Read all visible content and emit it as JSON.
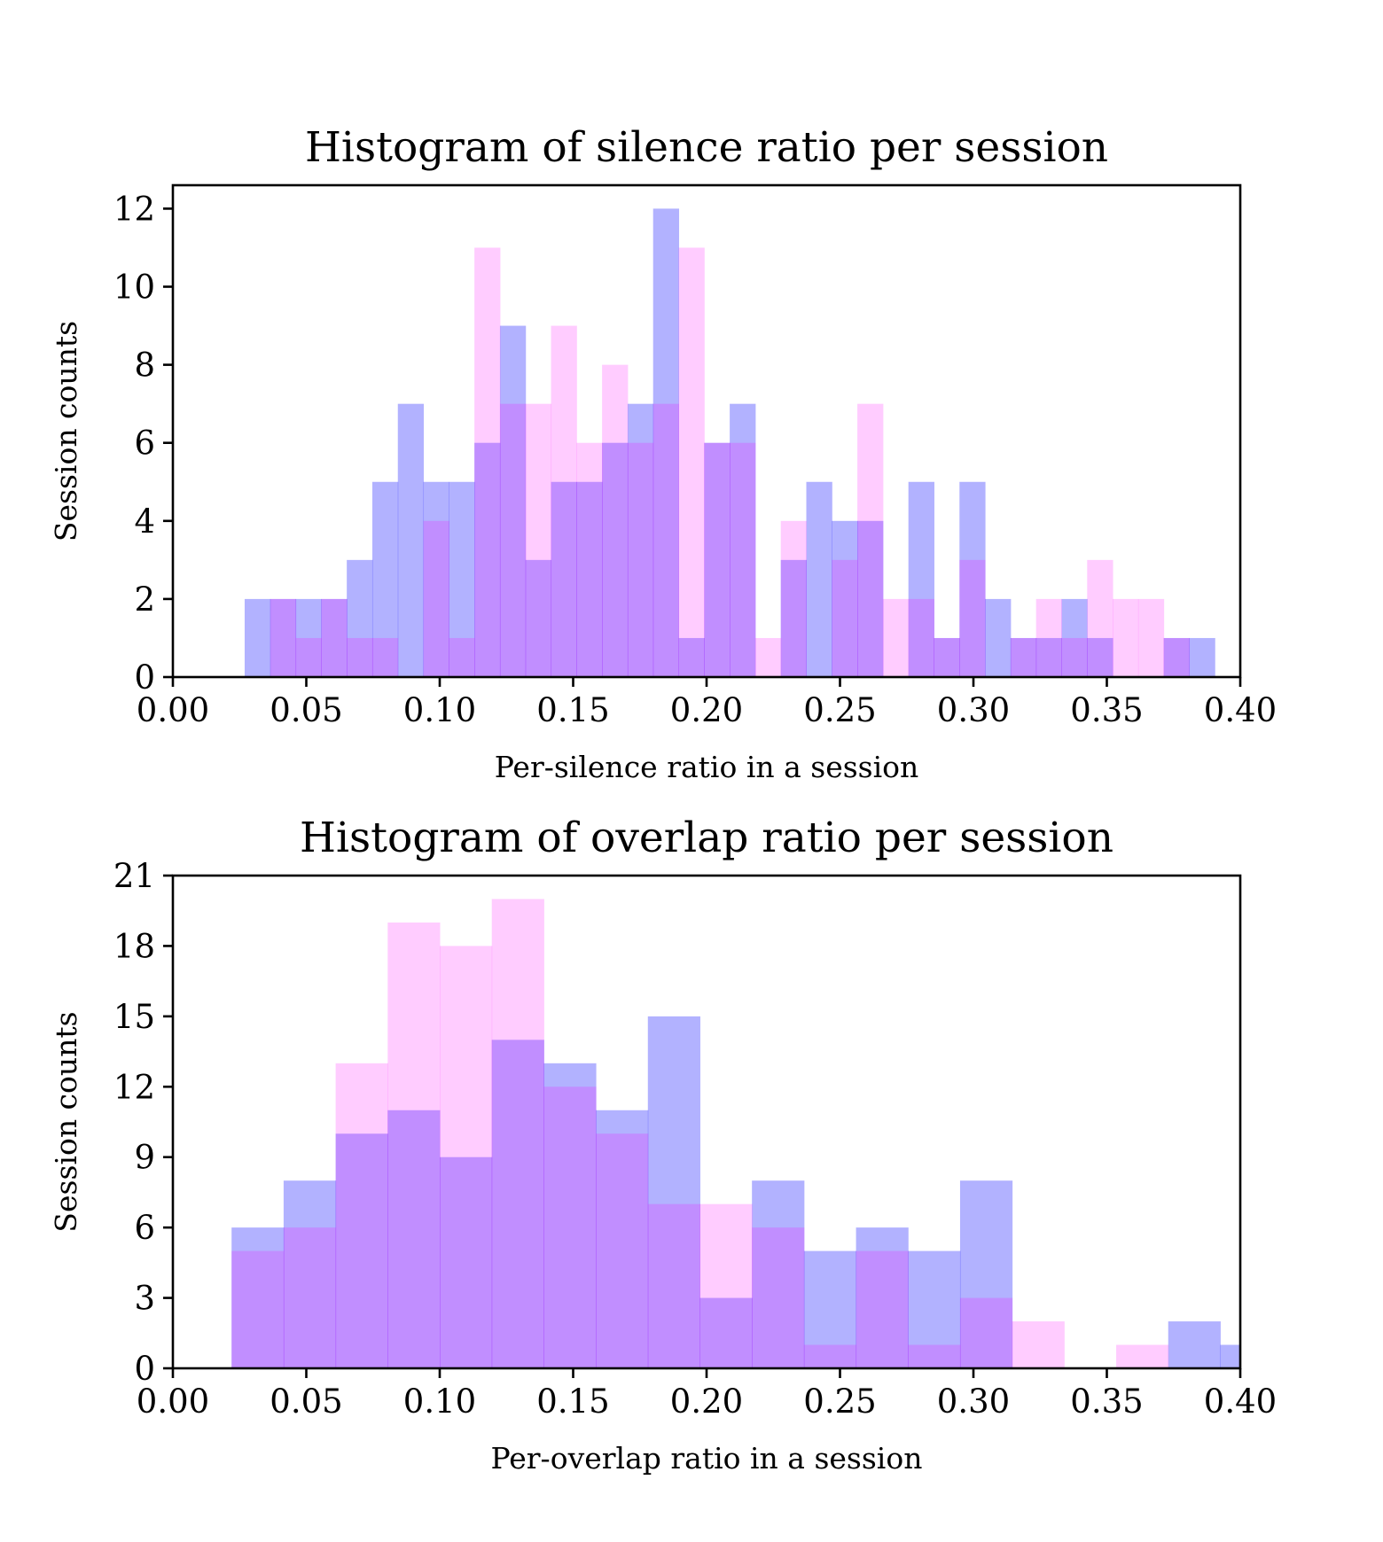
{
  "colors": {
    "series_a": "#0000ff",
    "series_a_alpha": 0.3,
    "series_b": "#ff00ff",
    "series_b_alpha": 0.2
  },
  "chart_data": [
    {
      "type": "bar",
      "title": "Histogram of silence ratio per session",
      "xlabel": "Per-silence ratio in a session",
      "ylabel": "Session counts",
      "xlim": [
        0,
        0.4
      ],
      "ylim": [
        0,
        12.6
      ],
      "xticks": [
        "0.00",
        "0.05",
        "0.10",
        "0.15",
        "0.20",
        "0.25",
        "0.30",
        "0.35",
        "0.40"
      ],
      "yticks": [
        "0",
        "2",
        "4",
        "6",
        "8",
        "10",
        "12"
      ],
      "grid": false,
      "bin_start": 0.0269,
      "bin_width": 0.009567,
      "series": [
        {
          "color": "#0000ff",
          "values": [
            2,
            2,
            2,
            2,
            3,
            5,
            7,
            5,
            5,
            6,
            9,
            3,
            5,
            5,
            6,
            7,
            12,
            1,
            6,
            7,
            0,
            3,
            5,
            4,
            4,
            0,
            5,
            1,
            5,
            2,
            1,
            1,
            2,
            1,
            0,
            0,
            1,
            1,
            0,
            0
          ]
        },
        {
          "color": "#ff00ff",
          "values": [
            0,
            2,
            1,
            2,
            1,
            1,
            0,
            4,
            1,
            11,
            7,
            7,
            9,
            6,
            8,
            6,
            7,
            11,
            6,
            6,
            1,
            4,
            0,
            3,
            7,
            2,
            2,
            1,
            3,
            0,
            1,
            2,
            1,
            3,
            2,
            2,
            1,
            0,
            0,
            1
          ]
        }
      ]
    },
    {
      "type": "bar",
      "title": "Histogram of overlap ratio per session",
      "xlabel": "Per-overlap ratio in a session",
      "ylabel": "Session counts",
      "xlim": [
        0,
        0.4
      ],
      "ylim": [
        0,
        21
      ],
      "xticks": [
        "0.00",
        "0.05",
        "0.10",
        "0.15",
        "0.20",
        "0.25",
        "0.30",
        "0.35",
        "0.40"
      ],
      "yticks": [
        "0",
        "3",
        "6",
        "9",
        "12",
        "15",
        "18",
        "21"
      ],
      "grid": false,
      "bin_start": 0.022,
      "bin_width": 0.0195,
      "series": [
        {
          "color": "#0000ff",
          "values": [
            6,
            8,
            10,
            11,
            9,
            14,
            13,
            11,
            15,
            3,
            8,
            5,
            6,
            5,
            8,
            0,
            0,
            0,
            2,
            1
          ]
        },
        {
          "color": "#ff00ff",
          "values": [
            5,
            6,
            13,
            19,
            18,
            20,
            12,
            10,
            7,
            7,
            6,
            1,
            5,
            1,
            3,
            2,
            0,
            1,
            0,
            0
          ]
        }
      ]
    }
  ]
}
